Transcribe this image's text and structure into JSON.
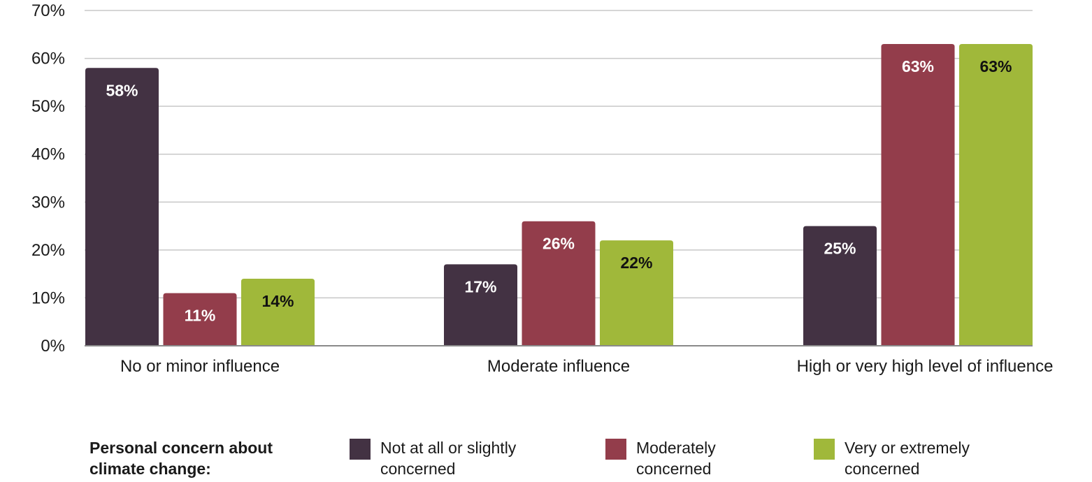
{
  "chart_data": {
    "type": "bar",
    "title": "",
    "xlabel": "",
    "ylabel": "",
    "ylim": [
      0,
      70
    ],
    "yticks": [
      "0%",
      "10%",
      "20%",
      "30%",
      "40%",
      "50%",
      "60%",
      "70%"
    ],
    "grid": true,
    "categories": [
      "No or minor influence",
      "Moderate influence",
      "High or very high level of influence"
    ],
    "legend_title": "Personal concern about climate change:",
    "legend_position": "bottom",
    "series": [
      {
        "name": "Not at all or slightly concerned",
        "color": "#433243",
        "label_color": "#ffffff",
        "values": [
          58,
          17,
          25
        ],
        "labels": [
          "58%",
          "17%",
          "25%"
        ]
      },
      {
        "name": "Moderately concerned",
        "color": "#933d4b",
        "label_color": "#ffffff",
        "values": [
          11,
          26,
          63
        ],
        "labels": [
          "11%",
          "26%",
          "63%"
        ]
      },
      {
        "name": "Very or extremely concerned",
        "color": "#a0b83a",
        "label_color": "#111111",
        "values": [
          14,
          22,
          63
        ],
        "labels": [
          "14%",
          "22%",
          "63%"
        ]
      }
    ]
  }
}
